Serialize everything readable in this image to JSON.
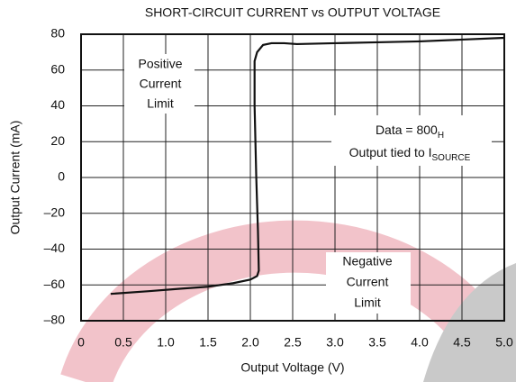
{
  "chart_data": {
    "type": "line",
    "title": "SHORT-CIRCUIT CURRENT vs OUTPUT VOLTAGE",
    "x_label": "Output Voltage (V)",
    "y_label": "Output Current (mA)",
    "x": [
      0.35,
      0.8,
      1.2,
      1.5,
      1.8,
      2.0,
      2.08,
      2.1,
      2.09,
      2.07,
      2.05,
      2.05,
      2.08,
      2.15,
      2.25,
      2.4,
      2.55,
      3.0,
      3.5,
      4.0,
      4.5,
      5.0
    ],
    "series": [
      {
        "color": "#111111",
        "values": [
          -65,
          -63.5,
          -62,
          -61,
          -59,
          -57,
          -55,
          -52,
          -30,
          0,
          40,
          65,
          70,
          74,
          75,
          75,
          74.5,
          75,
          75.5,
          76,
          77,
          78
        ]
      }
    ],
    "xlim": [
      0,
      5
    ],
    "ylim": [
      -80,
      80
    ],
    "xticks": [
      0,
      0.5,
      {
        "value": 1,
        "label": "1.0"
      },
      1.5,
      {
        "value": 2,
        "label": "2.0"
      },
      2.5,
      {
        "value": 3,
        "label": "3.0"
      },
      3.5,
      {
        "value": 4,
        "label": "4.0"
      },
      4.5,
      {
        "value": 5,
        "label": "5.0"
      }
    ],
    "yticks": [
      {
        "value": -80,
        "label": "–80"
      },
      {
        "value": -60,
        "label": "–60"
      },
      {
        "value": -40,
        "label": "–40"
      },
      {
        "value": -20,
        "label": "–20"
      },
      0,
      20,
      40,
      60,
      80
    ],
    "grid": true,
    "annotations": [
      {
        "lines": [
          "Positive",
          "Current",
          "Limit"
        ]
      },
      {
        "lines": [
          "Data = 800",
          "H",
          "Output tied to I",
          "SOURCE"
        ]
      },
      {
        "lines": [
          "Negative",
          "Current",
          "Limit"
        ]
      }
    ]
  }
}
